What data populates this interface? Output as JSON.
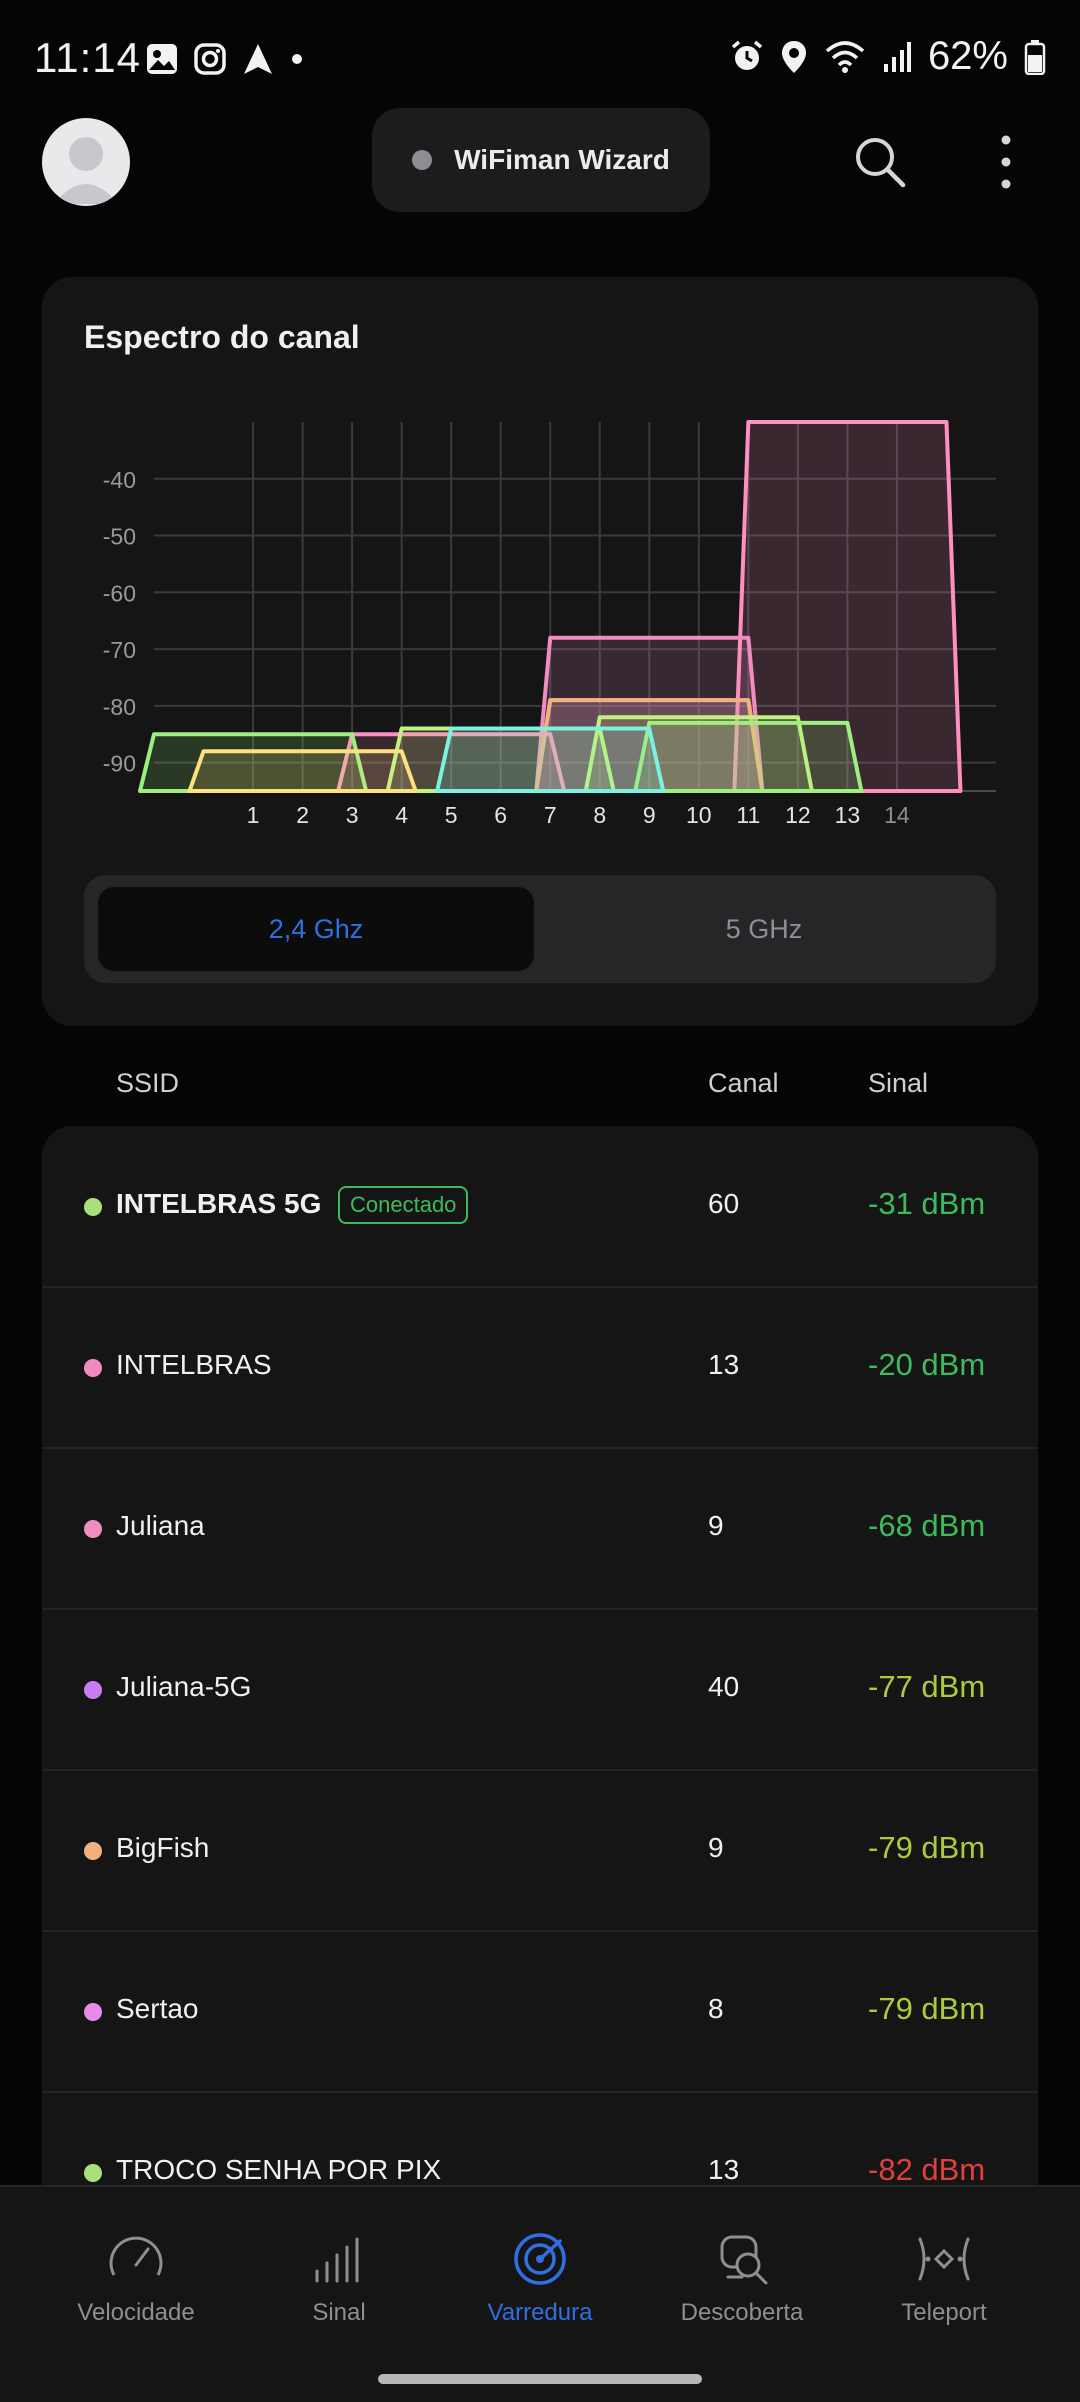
{
  "status": {
    "time": "11:14",
    "battery": "62%",
    "icons": [
      "gallery-icon",
      "instagram-icon",
      "navigation-icon",
      "dot-icon",
      "alarm-icon",
      "location-icon",
      "wifi-icon",
      "cell-signal-icon",
      "battery-icon"
    ]
  },
  "header": {
    "app_title": "WiFiman Wizard"
  },
  "spectrum": {
    "title": "Espectro do canal",
    "bands": {
      "active": "2,4 Ghz",
      "inactive": "5 GHz"
    }
  },
  "chart_data": {
    "type": "area",
    "x_ticks": [
      "1",
      "2",
      "3",
      "4",
      "5",
      "6",
      "7",
      "8",
      "9",
      "10",
      "11",
      "12",
      "13",
      "14"
    ],
    "y_ticks": [
      "-40",
      "-50",
      "-60",
      "-70",
      "-80",
      "-90"
    ],
    "ylim": [
      -95,
      -30
    ],
    "xlim": [
      -1,
      16
    ],
    "grid": true,
    "series": [
      {
        "color": "#ff8fbf",
        "center": 13,
        "dbm": -30
      },
      {
        "color": "#f08cc0",
        "center": 9,
        "dbm": -68
      },
      {
        "color": "#c97cf2",
        "center": 9,
        "dbm": -79
      },
      {
        "color": "#efb27e",
        "center": 9,
        "dbm": -79
      },
      {
        "color": "#ff8fbf",
        "center": 5,
        "dbm": -85
      },
      {
        "color": "#bff27e",
        "center": 6,
        "dbm": -84
      },
      {
        "color": "#9ef07e",
        "center": 1,
        "dbm": -85
      },
      {
        "color": "#ffe07e",
        "center": 2,
        "dbm": -88
      },
      {
        "color": "#bff27e",
        "center": 10,
        "dbm": -82
      },
      {
        "color": "#9ef07e",
        "center": 11,
        "dbm": -83
      },
      {
        "color": "#7ef0e0",
        "center": 7,
        "dbm": -84
      }
    ]
  },
  "list": {
    "headers": {
      "ssid": "SSID",
      "channel": "Canal",
      "signal": "Sinal"
    },
    "rows": [
      {
        "ssid": "INTELBRAS 5G",
        "badge": "Conectado",
        "channel": "60",
        "signal": "-31 dBm",
        "dot": "#a9e07e",
        "signal_color": "#3dbb5c"
      },
      {
        "ssid": "INTELBRAS",
        "channel": "13",
        "signal": "-20 dBm",
        "dot": "#f08cc0",
        "signal_color": "#3dbb5c"
      },
      {
        "ssid": "Juliana",
        "channel": "9",
        "signal": "-68 dBm",
        "dot": "#f08cc0",
        "signal_color": "#3dbb5c"
      },
      {
        "ssid": "Juliana-5G",
        "channel": "40",
        "signal": "-77 dBm",
        "dot": "#c97cf2",
        "signal_color": "#a9cc3a"
      },
      {
        "ssid": "BigFish",
        "channel": "9",
        "signal": "-79 dBm",
        "dot": "#efb27e",
        "signal_color": "#a9cc3a"
      },
      {
        "ssid": "Sertao",
        "channel": "8",
        "signal": "-79 dBm",
        "dot": "#e58be8",
        "signal_color": "#a9cc3a"
      },
      {
        "ssid": "TROCO SENHA POR PIX",
        "channel": "13",
        "signal": "-82 dBm",
        "dot": "#a9e07e",
        "signal_color": "#e0403a"
      }
    ]
  },
  "nav": {
    "items": [
      {
        "label": "Velocidade",
        "icon": "speedometer-icon"
      },
      {
        "label": "Sinal",
        "icon": "signal-bars-icon"
      },
      {
        "label": "Varredura",
        "icon": "radar-icon"
      },
      {
        "label": "Descoberta",
        "icon": "discovery-icon"
      },
      {
        "label": "Teleport",
        "icon": "teleport-icon"
      }
    ],
    "active": "Varredura"
  }
}
